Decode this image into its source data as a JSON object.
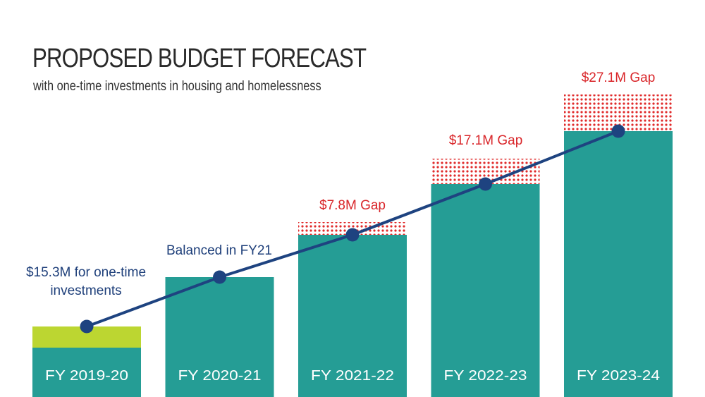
{
  "title": "PROPOSED BUDGET FORECAST",
  "subtitle": "with one-time investments in housing and homelessness",
  "colors": {
    "bar": "#259d95",
    "one_time": "#bcd631",
    "gap": "#e02b2b",
    "line": "#1e4380",
    "gap_text": "#d9262a",
    "note_text": "#1e3f7a"
  },
  "chart_data": {
    "type": "bar",
    "categories": [
      "FY 2019-20",
      "FY 2020-21",
      "FY 2021-22",
      "FY 2022-23",
      "FY 2023-24"
    ],
    "series": [
      {
        "values": [
          70,
          170,
          230,
          302,
          377
        ]
      },
      {
        "values": [
          30,
          0,
          0,
          0,
          0
        ]
      },
      {
        "values": [
          0,
          0,
          18,
          36,
          52
        ]
      }
    ],
    "line_values": [
      100,
      170,
      230,
      302,
      377
    ],
    "annotations": [
      "$15.3M for one-time investments",
      "Balanced in FY21",
      "$7.8M Gap",
      "$17.1M Gap",
      "$27.1M Gap"
    ],
    "ylim": [
      0,
      430
    ]
  }
}
